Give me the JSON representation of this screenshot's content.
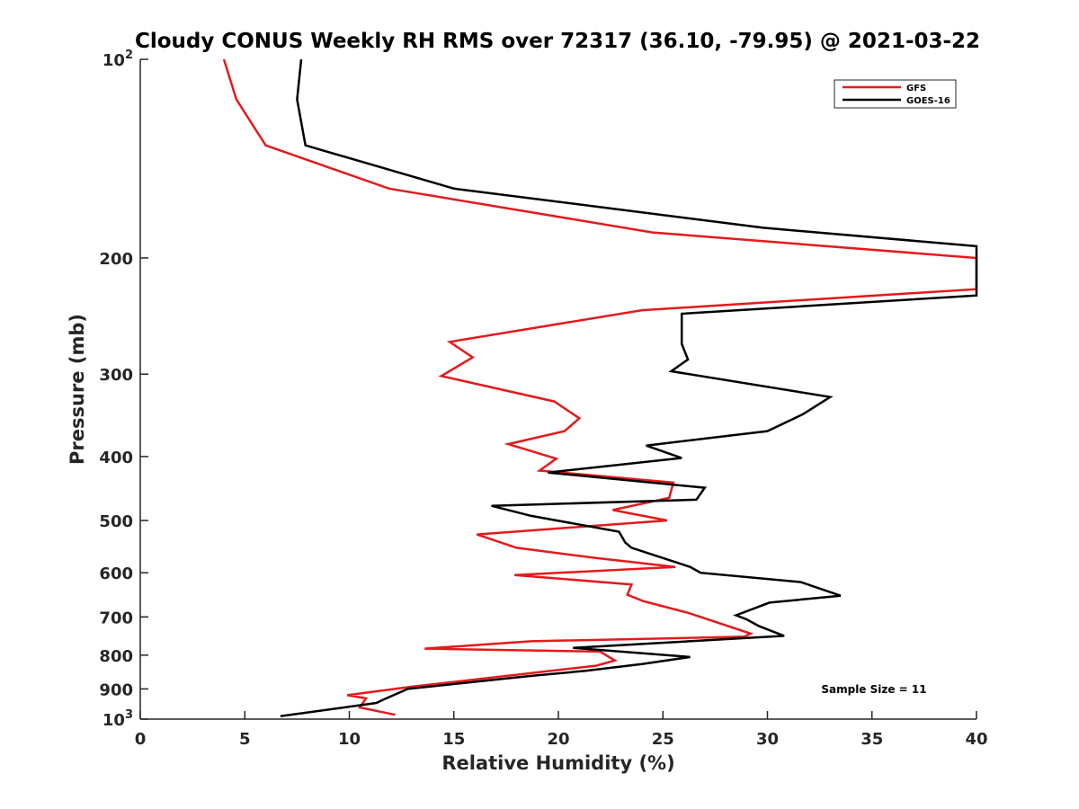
{
  "chart_data": {
    "type": "line",
    "title": "Cloudy CONUS Weekly RH RMS over 72317 (36.10, -79.95) @ 2021-03-22",
    "xlabel": "Relative Humidity (%)",
    "ylabel": "Pressure (mb)",
    "xlim": [
      0,
      40
    ],
    "ylim": [
      100,
      1000
    ],
    "y_scale": "log",
    "y_reversed": true,
    "x_ticks": [
      0,
      5,
      10,
      15,
      20,
      25,
      30,
      35,
      40
    ],
    "y_ticks": [
      {
        "value": 100,
        "label": "10",
        "sup": "2"
      },
      {
        "value": 200,
        "label": "200",
        "sup": ""
      },
      {
        "value": 300,
        "label": "300",
        "sup": ""
      },
      {
        "value": 400,
        "label": "400",
        "sup": ""
      },
      {
        "value": 500,
        "label": "500",
        "sup": ""
      },
      {
        "value": 600,
        "label": "600",
        "sup": ""
      },
      {
        "value": 700,
        "label": "700",
        "sup": ""
      },
      {
        "value": 800,
        "label": "800",
        "sup": ""
      },
      {
        "value": 900,
        "label": "900",
        "sup": ""
      },
      {
        "value": 1000,
        "label": "10",
        "sup": "3"
      }
    ],
    "grid": false,
    "legend_position": "top-right",
    "annotation": "Sample Size = 11",
    "series": [
      {
        "name": "GFS",
        "color": "#e41a1c",
        "points": [
          [
            4.0,
            100
          ],
          [
            4.6,
            115
          ],
          [
            6.0,
            135
          ],
          [
            11.9,
            157
          ],
          [
            24.5,
            183
          ],
          [
            40.0,
            200
          ],
          [
            40.0,
            223
          ],
          [
            24.0,
            240
          ],
          [
            14.8,
            268
          ],
          [
            15.9,
            283
          ],
          [
            14.4,
            302
          ],
          [
            19.8,
            330
          ],
          [
            21.0,
            350
          ],
          [
            20.3,
            366
          ],
          [
            17.6,
            383
          ],
          [
            19.9,
            403
          ],
          [
            19.1,
            420
          ],
          [
            25.5,
            438
          ],
          [
            25.3,
            462
          ],
          [
            22.6,
            482
          ],
          [
            25.2,
            500
          ],
          [
            16.1,
            525
          ],
          [
            18.0,
            550
          ],
          [
            21.8,
            570
          ],
          [
            25.6,
            588
          ],
          [
            17.9,
            605
          ],
          [
            23.5,
            625
          ],
          [
            23.3,
            648
          ],
          [
            24.1,
            663
          ],
          [
            26.2,
            690
          ],
          [
            29.2,
            742
          ],
          [
            28.9,
            750
          ],
          [
            18.7,
            762
          ],
          [
            13.6,
            782
          ],
          [
            22.0,
            790
          ],
          [
            22.7,
            815
          ],
          [
            21.8,
            830
          ],
          [
            13.0,
            893
          ],
          [
            9.9,
            920
          ],
          [
            10.8,
            930
          ],
          [
            10.5,
            960
          ],
          [
            12.2,
            985
          ]
        ]
      },
      {
        "name": "GOES-16",
        "color": "#000000",
        "points": [
          [
            7.7,
            100
          ],
          [
            7.5,
            115
          ],
          [
            7.9,
            135
          ],
          [
            15.0,
            157
          ],
          [
            29.8,
            180
          ],
          [
            40.0,
            192
          ],
          [
            40.0,
            228
          ],
          [
            25.9,
            243
          ],
          [
            25.9,
            270
          ],
          [
            26.2,
            285
          ],
          [
            25.4,
            297
          ],
          [
            33.0,
            325
          ],
          [
            31.7,
            345
          ],
          [
            30.0,
            366
          ],
          [
            24.2,
            385
          ],
          [
            25.9,
            402
          ],
          [
            19.5,
            423
          ],
          [
            27.0,
            446
          ],
          [
            26.6,
            465
          ],
          [
            16.8,
            475
          ],
          [
            18.7,
            492
          ],
          [
            22.9,
            520
          ],
          [
            23.2,
            540
          ],
          [
            23.5,
            550
          ],
          [
            26.3,
            588
          ],
          [
            26.8,
            600
          ],
          [
            31.6,
            620
          ],
          [
            33.5,
            650
          ],
          [
            30.1,
            666
          ],
          [
            28.5,
            696
          ],
          [
            29.0,
            706
          ],
          [
            29.6,
            723
          ],
          [
            30.8,
            748
          ],
          [
            20.7,
            780
          ],
          [
            26.3,
            805
          ],
          [
            24.0,
            825
          ],
          [
            21.3,
            845
          ],
          [
            18.7,
            860
          ],
          [
            12.8,
            900
          ],
          [
            11.6,
            935
          ],
          [
            11.3,
            945
          ],
          [
            6.7,
            990
          ]
        ]
      }
    ]
  }
}
